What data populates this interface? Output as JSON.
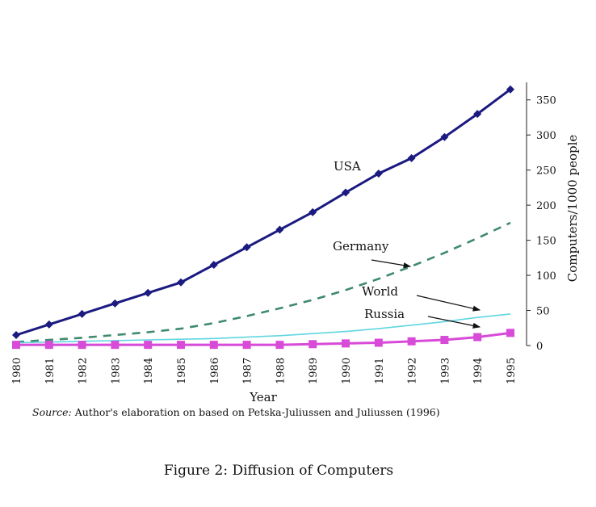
{
  "chart_data": {
    "type": "line",
    "xlabel": "Year",
    "ylabel": "Computers/1000 people",
    "xlim": [
      1980,
      1995
    ],
    "ylim": [
      0,
      375
    ],
    "yticks": [
      0,
      50,
      100,
      150,
      200,
      250,
      300,
      350
    ],
    "x": [
      1980,
      1981,
      1982,
      1983,
      1984,
      1985,
      1986,
      1987,
      1988,
      1989,
      1990,
      1991,
      1992,
      1993,
      1994,
      1995
    ],
    "series": [
      {
        "name": "USA",
        "style": "solid-diamond",
        "color": "#1a1a80",
        "values": [
          15,
          30,
          45,
          60,
          75,
          90,
          115,
          140,
          165,
          190,
          218,
          245,
          267,
          297,
          330,
          365
        ]
      },
      {
        "name": "Germany",
        "style": "dashed",
        "color": "#3e8a6c",
        "values": [
          5,
          8,
          11,
          15,
          19,
          24,
          32,
          42,
          53,
          65,
          79,
          95,
          113,
          132,
          153,
          175
        ]
      },
      {
        "name": "World",
        "style": "solid-thin",
        "color": "#5fd6e0",
        "values": [
          4,
          5,
          6,
          7,
          8,
          9,
          10,
          12,
          14,
          17,
          20,
          24,
          29,
          34,
          40,
          45
        ]
      },
      {
        "name": "Russia",
        "style": "solid-square",
        "color": "#d84ad8",
        "values": [
          1,
          1,
          1,
          1,
          1,
          1,
          1,
          1,
          1,
          2,
          3,
          4,
          6,
          8,
          12,
          18
        ]
      }
    ],
    "legend": "inline-annotations"
  },
  "source": {
    "label": "Source:",
    "text": "Author's elaboration on based on Petska-Juliussen and Juliussen (1996)"
  },
  "caption": "Figure 2: Diffusion of Computers"
}
